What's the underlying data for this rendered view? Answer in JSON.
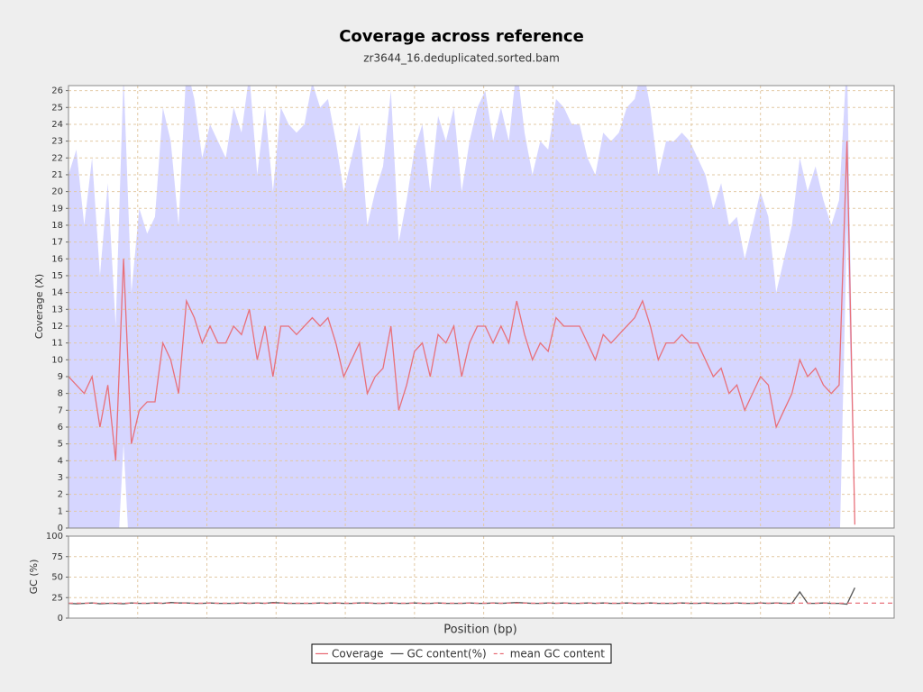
{
  "chart_data": [
    {
      "type": "line",
      "title": "Coverage across reference",
      "subtitle": "zr3644_16.deduplicated.sorted.bam",
      "ylabel": "Coverage (X)",
      "xlim": [
        0,
        105
      ],
      "xticks": [
        0,
        8.8,
        17.6,
        26.4,
        35.2,
        44,
        52.8,
        61.6,
        70.4,
        79.2,
        88,
        96.8
      ],
      "ylim": [
        0,
        26.3
      ],
      "yticks": [
        0,
        1,
        2,
        3,
        4,
        5,
        6,
        7,
        8,
        9,
        10,
        11,
        12,
        13,
        14,
        15,
        16,
        17,
        18,
        19,
        20,
        21,
        22,
        23,
        24,
        25,
        26
      ],
      "grid": true,
      "band_color": "#d6d6ff",
      "std": [
        12,
        14,
        10,
        13,
        9,
        12,
        8,
        11,
        9,
        12,
        10,
        11,
        14,
        13,
        10,
        14,
        13,
        11,
        12,
        12,
        11,
        13,
        12,
        14,
        11,
        13,
        11,
        13,
        12,
        12,
        12,
        14,
        13,
        13,
        12,
        11,
        12,
        13,
        10,
        11,
        12,
        14,
        10,
        11,
        12,
        13,
        11,
        13,
        12,
        13,
        11,
        12,
        13,
        14,
        12,
        13,
        12,
        14,
        12,
        11,
        12,
        12,
        13,
        13,
        12,
        12,
        11,
        11,
        12,
        12,
        12,
        13,
        13,
        14,
        13,
        11,
        12,
        12,
        12,
        12,
        11,
        11,
        10,
        11,
        10,
        10,
        9,
        10,
        11,
        10,
        8,
        9,
        10,
        12,
        11,
        12,
        11,
        10,
        11,
        5,
        0.2
      ],
      "series": [
        {
          "name": "Coverage",
          "color": "#e8707a",
          "values": [
            9,
            8.5,
            8,
            9,
            6,
            8.5,
            4,
            16,
            5,
            7,
            7.5,
            7.5,
            11,
            10,
            8,
            13.5,
            12.5,
            11,
            12,
            11,
            11,
            12,
            11.5,
            13,
            10,
            12,
            9,
            12,
            12,
            11.5,
            12,
            12.5,
            12,
            12.5,
            11,
            9,
            10,
            11,
            8,
            9,
            9.5,
            12,
            7,
            8.5,
            10.5,
            11,
            9,
            11.5,
            11,
            12,
            9,
            11,
            12,
            12,
            11,
            12,
            11,
            13.5,
            11.5,
            10,
            11,
            10.5,
            12.5,
            12,
            12,
            12,
            11,
            10,
            11.5,
            11,
            11.5,
            12,
            12.5,
            13.5,
            12,
            10,
            11,
            11,
            11.5,
            11,
            11,
            10,
            9,
            9.5,
            8,
            8.5,
            7,
            8,
            9,
            8.5,
            6,
            7,
            8,
            10,
            9,
            9.5,
            8.5,
            8,
            8.5,
            23,
            0.2
          ]
        }
      ]
    },
    {
      "type": "line",
      "xlabel": "Position (bp)",
      "ylabel": "GC (%)",
      "xlim": [
        0,
        105
      ],
      "xticks": [
        0,
        8.8,
        17.6,
        26.4,
        35.2,
        44,
        52.8,
        61.6,
        70.4,
        79.2,
        88,
        96.8
      ],
      "ylim": [
        0,
        100
      ],
      "yticks": [
        0,
        25,
        50,
        75,
        100
      ],
      "grid": true,
      "series": [
        {
          "name": "GC content(%)",
          "color": "#555555",
          "values": [
            18,
            17.5,
            18,
            18.5,
            17.5,
            18,
            18,
            17.5,
            18.5,
            18,
            18,
            18.5,
            18,
            19,
            18.5,
            18.5,
            18,
            18,
            18.5,
            18,
            18,
            18,
            18.5,
            18,
            18.5,
            18,
            19,
            18.5,
            18,
            18,
            18,
            18,
            18.5,
            18,
            18.5,
            18,
            18,
            18.5,
            18.5,
            18,
            18,
            18.5,
            18,
            18,
            18.5,
            18,
            18,
            18.5,
            18,
            18,
            18,
            18.5,
            18,
            18,
            18.5,
            18,
            18.5,
            19,
            18.5,
            18,
            18,
            18.5,
            18,
            18.5,
            18,
            18,
            18.5,
            18,
            18.5,
            18,
            18,
            18.5,
            18,
            18,
            18.5,
            18,
            18,
            18,
            18.5,
            18,
            18,
            18.5,
            18,
            18,
            18,
            18.5,
            18,
            18,
            18.5,
            18,
            18.5,
            18,
            18,
            32,
            18,
            18,
            18.5,
            18,
            18,
            17,
            37
          ]
        },
        {
          "name": "mean GC content",
          "color": "#e8707a",
          "dashed": true,
          "value": 18.3
        }
      ]
    }
  ]
}
